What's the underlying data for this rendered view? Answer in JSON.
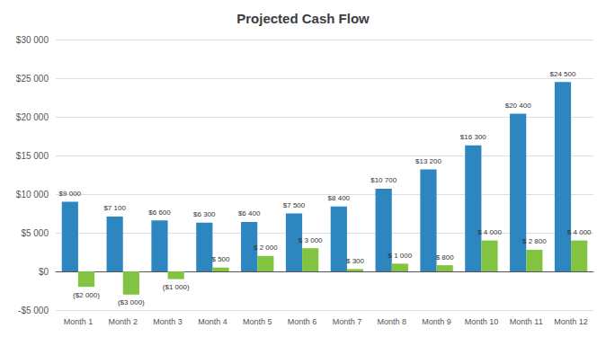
{
  "chart_data": {
    "type": "bar",
    "title": "Projected Cash Flow",
    "categories": [
      "Month 1",
      "Month 2",
      "Month 3",
      "Month 4",
      "Month 5",
      "Month 6",
      "Month 7",
      "Month 8",
      "Month 9",
      "Month 10",
      "Month 11",
      "Month 12"
    ],
    "series": [
      {
        "color": "#2E86C1",
        "values": [
          9000,
          7100,
          6600,
          6300,
          6400,
          7500,
          8400,
          10700,
          13200,
          16300,
          20400,
          24500
        ],
        "value_labels": [
          "$9 000",
          "$7 100",
          "$6 600",
          "$6 300",
          "$6 400",
          "$7 500",
          "$8 400",
          "$10 700",
          "$13 200",
          "$16 300",
          "$20 400",
          "$24 500"
        ]
      },
      {
        "color": "#82C341",
        "values": [
          -2000,
          -3000,
          -1000,
          500,
          2000,
          3000,
          300,
          1000,
          800,
          4000,
          2800,
          4000
        ],
        "value_labels": [
          "($2 000)",
          "($3 000)",
          "($1 000)",
          "$ 500",
          "$ 2 000",
          "$ 3 000",
          "$ 300",
          "$ 1 000",
          "$ 800",
          "$ 4 000",
          "$ 2 800",
          "$ 4 000"
        ]
      }
    ],
    "ylim": [
      -5000,
      30000
    ],
    "yticks": [
      {
        "value": -5000,
        "label": "-$5 000"
      },
      {
        "value": 0,
        "label": "$0"
      },
      {
        "value": 5000,
        "label": "$5 000"
      },
      {
        "value": 10000,
        "label": "$10 000"
      },
      {
        "value": 15000,
        "label": "$15 000"
      },
      {
        "value": 20000,
        "label": "$20 000"
      },
      {
        "value": 25000,
        "label": "$25 000"
      },
      {
        "value": 30000,
        "label": "$30 000"
      }
    ],
    "grid": true,
    "data_labels": true
  }
}
